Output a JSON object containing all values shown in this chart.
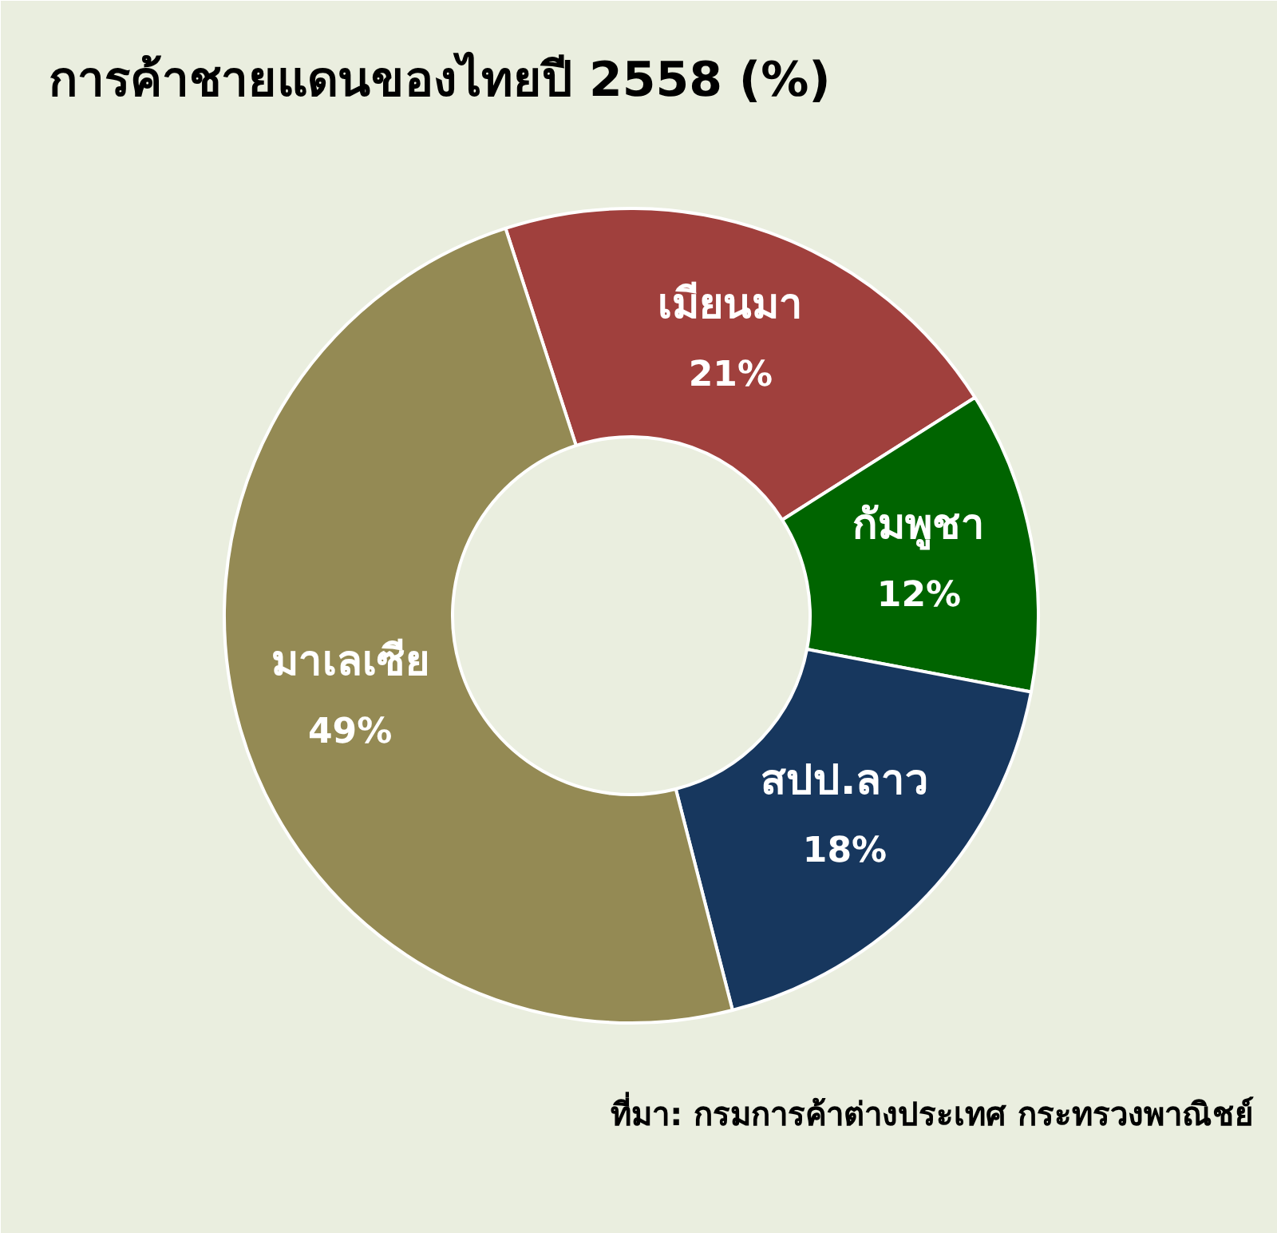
{
  "chart_data": {
    "type": "donut",
    "title": "การค้าชายแดนของไทยปี 2558 (%)",
    "categories": [
      "เมียนมา",
      "กัมพูชา",
      "สปป.ลาว",
      "มาเลเซีย"
    ],
    "values": [
      21,
      12,
      18,
      49
    ],
    "colors": [
      "#a0403d",
      "#006400",
      "#17375e",
      "#948a54"
    ],
    "value_labels": [
      "21%",
      "12%",
      "18%",
      "49%"
    ],
    "annotations": [
      "ที่มา: กรมการค้าต่างประเทศ กระทรวงพาณิชย์"
    ]
  }
}
